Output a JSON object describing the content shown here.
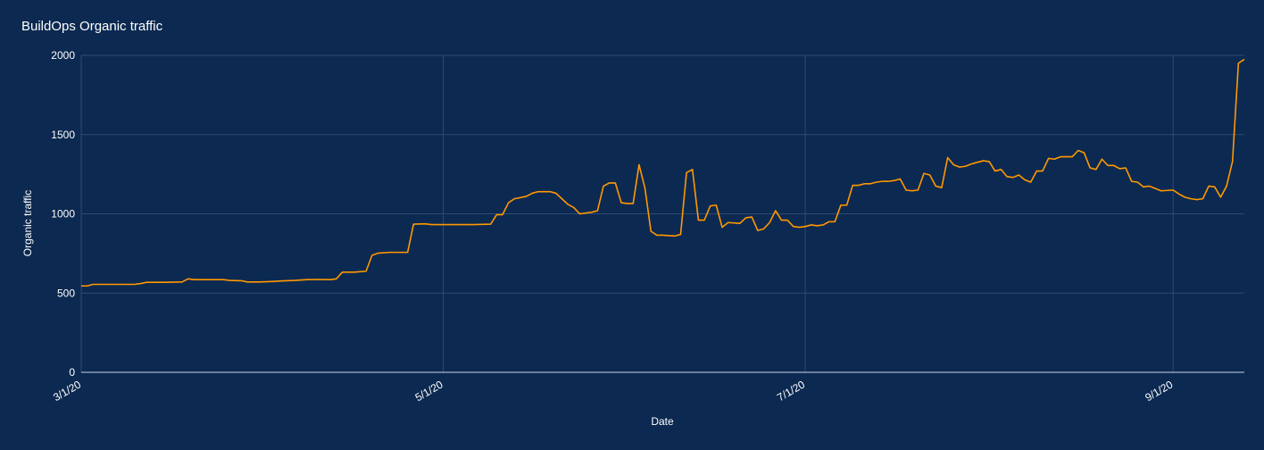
{
  "chart_data": {
    "type": "line",
    "title": "BuildOps Organic traffic",
    "xlabel": "Date",
    "ylabel": "Organic traffic",
    "ylim": [
      0,
      2000
    ],
    "yticks": [
      "0",
      "500",
      "1000",
      "1500",
      "2000"
    ],
    "xticks": [
      {
        "label": "3/1/20",
        "date": "2020-03-01"
      },
      {
        "label": "5/1/20",
        "date": "2020-05-01"
      },
      {
        "label": "7/1/20",
        "date": "2020-07-01"
      },
      {
        "label": "9/1/20",
        "date": "2020-09-01"
      }
    ],
    "xlim": [
      "2020-03-01",
      "2020-09-13"
    ],
    "grid": true,
    "line_color": "#ff9900",
    "series": [
      {
        "points": [
          [
            "2020-03-01",
            545
          ],
          [
            "2020-03-02",
            545
          ],
          [
            "2020-03-03",
            555
          ],
          [
            "2020-03-06",
            555
          ],
          [
            "2020-03-10",
            555
          ],
          [
            "2020-03-11",
            560
          ],
          [
            "2020-03-12",
            568
          ],
          [
            "2020-03-15",
            568
          ],
          [
            "2020-03-18",
            570
          ],
          [
            "2020-03-19",
            590
          ],
          [
            "2020-03-20",
            585
          ],
          [
            "2020-03-25",
            585
          ],
          [
            "2020-03-26",
            580
          ],
          [
            "2020-03-28",
            578
          ],
          [
            "2020-03-29",
            570
          ],
          [
            "2020-03-31",
            570
          ],
          [
            "2020-04-02",
            573
          ],
          [
            "2020-04-04",
            577
          ],
          [
            "2020-04-06",
            580
          ],
          [
            "2020-04-08",
            585
          ],
          [
            "2020-04-10",
            586
          ],
          [
            "2020-04-12",
            585
          ],
          [
            "2020-04-13",
            590
          ],
          [
            "2020-04-14",
            632
          ],
          [
            "2020-04-16",
            632
          ],
          [
            "2020-04-18",
            638
          ],
          [
            "2020-04-19",
            738
          ],
          [
            "2020-04-20",
            752
          ],
          [
            "2020-04-22",
            757
          ],
          [
            "2020-04-24",
            757
          ],
          [
            "2020-04-25",
            757
          ],
          [
            "2020-04-26",
            935
          ],
          [
            "2020-04-28",
            937
          ],
          [
            "2020-04-29",
            932
          ],
          [
            "2020-05-06",
            932
          ],
          [
            "2020-05-09",
            935
          ],
          [
            "2020-05-10",
            995
          ],
          [
            "2020-05-11",
            995
          ],
          [
            "2020-05-12",
            1070
          ],
          [
            "2020-05-13",
            1095
          ],
          [
            "2020-05-15",
            1110
          ],
          [
            "2020-05-16",
            1130
          ],
          [
            "2020-05-17",
            1140
          ],
          [
            "2020-05-19",
            1140
          ],
          [
            "2020-05-20",
            1130
          ],
          [
            "2020-05-21",
            1095
          ],
          [
            "2020-05-22",
            1060
          ],
          [
            "2020-05-23",
            1040
          ],
          [
            "2020-05-24",
            1000
          ],
          [
            "2020-05-26",
            1010
          ],
          [
            "2020-05-27",
            1020
          ],
          [
            "2020-05-28",
            1175
          ],
          [
            "2020-05-29",
            1195
          ],
          [
            "2020-05-30",
            1195
          ],
          [
            "2020-05-31",
            1070
          ],
          [
            "2020-06-01",
            1065
          ],
          [
            "2020-06-02",
            1065
          ],
          [
            "2020-06-03",
            1310
          ],
          [
            "2020-06-04",
            1160
          ],
          [
            "2020-06-05",
            890
          ],
          [
            "2020-06-06",
            865
          ],
          [
            "2020-06-07",
            865
          ],
          [
            "2020-06-09",
            860
          ],
          [
            "2020-06-10",
            870
          ],
          [
            "2020-06-11",
            1260
          ],
          [
            "2020-06-12",
            1280
          ],
          [
            "2020-06-13",
            960
          ],
          [
            "2020-06-14",
            960
          ],
          [
            "2020-06-15",
            1050
          ],
          [
            "2020-06-16",
            1055
          ],
          [
            "2020-06-17",
            915
          ],
          [
            "2020-06-18",
            945
          ],
          [
            "2020-06-20",
            940
          ],
          [
            "2020-06-21",
            975
          ],
          [
            "2020-06-22",
            980
          ],
          [
            "2020-06-23",
            895
          ],
          [
            "2020-06-24",
            905
          ],
          [
            "2020-06-25",
            945
          ],
          [
            "2020-06-26",
            1020
          ],
          [
            "2020-06-27",
            960
          ],
          [
            "2020-06-28",
            960
          ],
          [
            "2020-06-29",
            920
          ],
          [
            "2020-06-30",
            915
          ],
          [
            "2020-07-01",
            920
          ],
          [
            "2020-07-02",
            930
          ],
          [
            "2020-07-03",
            925
          ],
          [
            "2020-07-04",
            930
          ],
          [
            "2020-07-05",
            950
          ],
          [
            "2020-07-06",
            950
          ],
          [
            "2020-07-07",
            1055
          ],
          [
            "2020-07-08",
            1055
          ],
          [
            "2020-07-09",
            1180
          ],
          [
            "2020-07-10",
            1180
          ],
          [
            "2020-07-11",
            1190
          ],
          [
            "2020-07-12",
            1190
          ],
          [
            "2020-07-13",
            1200
          ],
          [
            "2020-07-14",
            1205
          ],
          [
            "2020-07-15",
            1205
          ],
          [
            "2020-07-16",
            1210
          ],
          [
            "2020-07-17",
            1220
          ],
          [
            "2020-07-18",
            1150
          ],
          [
            "2020-07-19",
            1145
          ],
          [
            "2020-07-20",
            1150
          ],
          [
            "2020-07-21",
            1255
          ],
          [
            "2020-07-22",
            1245
          ],
          [
            "2020-07-23",
            1175
          ],
          [
            "2020-07-24",
            1165
          ],
          [
            "2020-07-25",
            1355
          ],
          [
            "2020-07-26",
            1310
          ],
          [
            "2020-07-27",
            1295
          ],
          [
            "2020-07-28",
            1300
          ],
          [
            "2020-07-29",
            1315
          ],
          [
            "2020-07-30",
            1325
          ],
          [
            "2020-07-31",
            1335
          ],
          [
            "2020-08-01",
            1330
          ],
          [
            "2020-08-02",
            1270
          ],
          [
            "2020-08-03",
            1280
          ],
          [
            "2020-08-04",
            1235
          ],
          [
            "2020-08-05",
            1230
          ],
          [
            "2020-08-06",
            1245
          ],
          [
            "2020-08-07",
            1215
          ],
          [
            "2020-08-08",
            1200
          ],
          [
            "2020-08-09",
            1270
          ],
          [
            "2020-08-10",
            1270
          ],
          [
            "2020-08-11",
            1350
          ],
          [
            "2020-08-12",
            1345
          ],
          [
            "2020-08-13",
            1360
          ],
          [
            "2020-08-14",
            1360
          ],
          [
            "2020-08-15",
            1360
          ],
          [
            "2020-08-16",
            1400
          ],
          [
            "2020-08-17",
            1385
          ],
          [
            "2020-08-18",
            1290
          ],
          [
            "2020-08-19",
            1280
          ],
          [
            "2020-08-20",
            1345
          ],
          [
            "2020-08-21",
            1305
          ],
          [
            "2020-08-22",
            1305
          ],
          [
            "2020-08-23",
            1285
          ],
          [
            "2020-08-24",
            1290
          ],
          [
            "2020-08-25",
            1205
          ],
          [
            "2020-08-26",
            1200
          ],
          [
            "2020-08-27",
            1170
          ],
          [
            "2020-08-28",
            1175
          ],
          [
            "2020-08-29",
            1160
          ],
          [
            "2020-08-30",
            1145
          ],
          [
            "2020-09-01",
            1150
          ],
          [
            "2020-09-02",
            1125
          ],
          [
            "2020-09-03",
            1105
          ],
          [
            "2020-09-04",
            1095
          ],
          [
            "2020-09-05",
            1090
          ],
          [
            "2020-09-06",
            1095
          ],
          [
            "2020-09-07",
            1175
          ],
          [
            "2020-09-08",
            1170
          ],
          [
            "2020-09-09",
            1105
          ],
          [
            "2020-09-10",
            1175
          ],
          [
            "2020-09-11",
            1330
          ],
          [
            "2020-09-12",
            1950
          ],
          [
            "2020-09-13",
            1975
          ]
        ]
      }
    ]
  }
}
